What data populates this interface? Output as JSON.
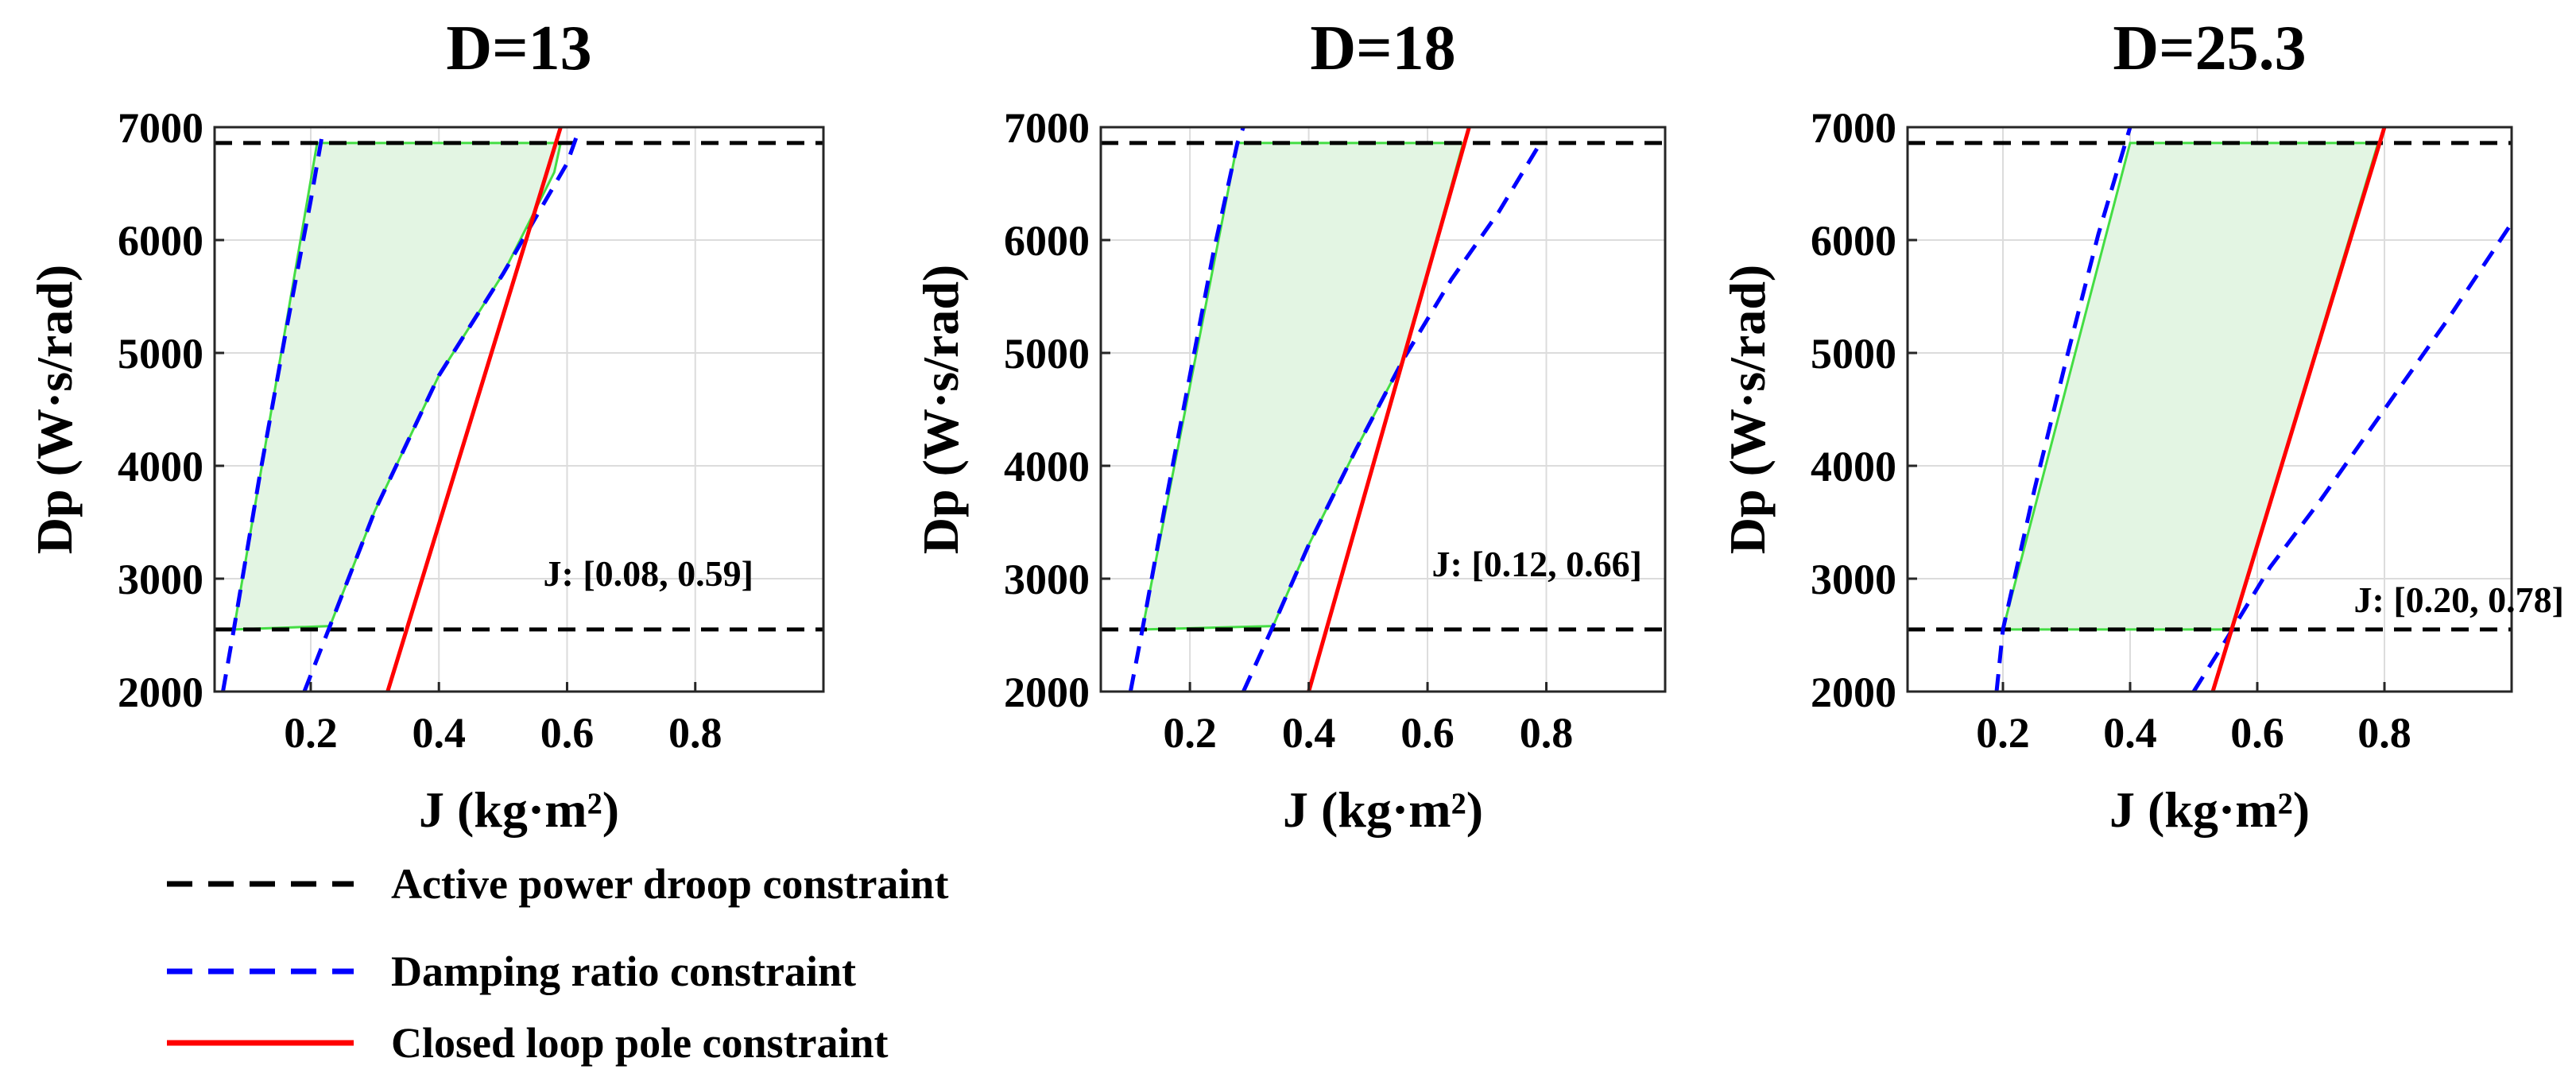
{
  "colors": {
    "droop": "#000000",
    "damping": "#0000ff",
    "pole": "#ff0000",
    "feasible_fill": "#e3f5e3",
    "feasible_edge": "#44dd44"
  },
  "chart_data": [
    {
      "type": "line",
      "title": "D=13",
      "xlabel": "J (kg·m²)",
      "ylabel": "Dp (W·s/rad)",
      "xlim": [
        0.05,
        1.0
      ],
      "ylim": [
        2000,
        7000
      ],
      "xticks": [
        0.2,
        0.4,
        0.6,
        0.8
      ],
      "xtick_labels": [
        "0.2",
        "0.4",
        "0.6",
        "0.8"
      ],
      "yticks": [
        2000,
        3000,
        4000,
        5000,
        6000,
        7000
      ],
      "ytick_labels": [
        "2000",
        "3000",
        "4000",
        "5000",
        "6000",
        "7000"
      ],
      "annotation": "J: [0.08, 0.59]",
      "series": [
        {
          "name": "Active power droop constraint",
          "style": "dashed",
          "color": "#000000",
          "x": [
            0.05,
            1.0
          ],
          "y": [
            2550,
            2550
          ]
        },
        {
          "name": "Active power droop constraint",
          "style": "dashed",
          "color": "#000000",
          "x": [
            0.05,
            1.0
          ],
          "y": [
            6860,
            6860
          ]
        },
        {
          "name": "Damping ratio constraint",
          "style": "dashed",
          "color": "#0000ff",
          "x": [
            0.063,
            0.08,
            0.12,
            0.16,
            0.2,
            0.22
          ],
          "y": [
            2000,
            2550,
            3900,
            5150,
            6350,
            7000
          ]
        },
        {
          "name": "Damping ratio constraint",
          "style": "dashed",
          "color": "#0000ff",
          "x": [
            0.19,
            0.23,
            0.3,
            0.4,
            0.5,
            0.6,
            0.62
          ],
          "y": [
            2000,
            2580,
            3600,
            4800,
            5700,
            6680,
            7000
          ]
        },
        {
          "name": "Closed loop pole constraint",
          "style": "solid",
          "color": "#ff0000",
          "x": [
            0.32,
            0.59
          ],
          "y": [
            2000,
            7000
          ]
        }
      ],
      "feasible_region": {
        "x": [
          0.08,
          0.21,
          0.59,
          0.58,
          0.5,
          0.4,
          0.3,
          0.23
        ],
        "y": [
          2550,
          6860,
          6860,
          6600,
          5700,
          4800,
          3600,
          2580
        ]
      }
    },
    {
      "type": "line",
      "title": "D=18",
      "xlabel": "J (kg·m²)",
      "ylabel": "Dp (W·s/rad)",
      "xlim": [
        0.05,
        1.0
      ],
      "ylim": [
        2000,
        7000
      ],
      "xticks": [
        0.2,
        0.4,
        0.6,
        0.8
      ],
      "xtick_labels": [
        "0.2",
        "0.4",
        "0.6",
        "0.8"
      ],
      "yticks": [
        2000,
        3000,
        4000,
        5000,
        6000,
        7000
      ],
      "ytick_labels": [
        "2000",
        "3000",
        "4000",
        "5000",
        "6000",
        "7000"
      ],
      "annotation": "J: [0.12, 0.66]",
      "series": [
        {
          "name": "Active power droop constraint",
          "style": "dashed",
          "color": "#000000",
          "x": [
            0.05,
            1.0
          ],
          "y": [
            2550,
            2550
          ]
        },
        {
          "name": "Active power droop constraint",
          "style": "dashed",
          "color": "#000000",
          "x": [
            0.05,
            1.0
          ],
          "y": [
            6860,
            6860
          ]
        },
        {
          "name": "Damping ratio constraint",
          "style": "dashed",
          "color": "#0000ff",
          "x": [
            0.1,
            0.12,
            0.16,
            0.2,
            0.24,
            0.28,
            0.29
          ],
          "y": [
            2000,
            2550,
            3700,
            4800,
            5900,
            6860,
            7000
          ]
        },
        {
          "name": "Damping ratio constraint",
          "style": "dashed",
          "color": "#0000ff",
          "x": [
            0.29,
            0.34,
            0.4,
            0.48,
            0.56,
            0.64,
            0.72,
            0.79
          ],
          "y": [
            2000,
            2580,
            3300,
            4150,
            4950,
            5650,
            6250,
            6860
          ]
        },
        {
          "name": "Closed loop pole constraint",
          "style": "solid",
          "color": "#ff0000",
          "x": [
            0.4,
            0.67
          ],
          "y": [
            2000,
            7000
          ]
        }
      ],
      "feasible_region": {
        "x": [
          0.12,
          0.28,
          0.66,
          0.56,
          0.48,
          0.4,
          0.34
        ],
        "y": [
          2550,
          6860,
          6860,
          4950,
          4150,
          3300,
          2580
        ]
      }
    },
    {
      "type": "line",
      "title": "D=25.3",
      "xlabel": "J (kg·m²)",
      "ylabel": "Dp (W·s/rad)",
      "xlim": [
        0.05,
        1.0
      ],
      "ylim": [
        2000,
        7000
      ],
      "xticks": [
        0.2,
        0.4,
        0.6,
        0.8
      ],
      "xtick_labels": [
        "0.2",
        "0.4",
        "0.6",
        "0.8"
      ],
      "yticks": [
        2000,
        3000,
        4000,
        5000,
        6000,
        7000
      ],
      "ytick_labels": [
        "2000",
        "3000",
        "4000",
        "5000",
        "6000",
        "7000"
      ],
      "annotation": "J: [0.20, 0.78]",
      "series": [
        {
          "name": "Active power droop constraint",
          "style": "dashed",
          "color": "#000000",
          "x": [
            0.05,
            1.0
          ],
          "y": [
            2550,
            2550
          ]
        },
        {
          "name": "Active power droop constraint",
          "style": "dashed",
          "color": "#000000",
          "x": [
            0.05,
            1.0
          ],
          "y": [
            6860,
            6860
          ]
        },
        {
          "name": "Damping ratio constraint",
          "style": "dashed",
          "color": "#0000ff",
          "x": [
            0.19,
            0.2,
            0.25,
            0.3,
            0.35,
            0.4
          ],
          "y": [
            2000,
            2550,
            3800,
            4950,
            6050,
            7000
          ]
        },
        {
          "name": "Damping ratio constraint",
          "style": "dashed",
          "color": "#0000ff",
          "x": [
            0.5,
            0.55,
            0.62,
            0.7,
            0.8,
            0.9,
            1.0
          ],
          "y": [
            2000,
            2450,
            3100,
            3700,
            4500,
            5300,
            6150
          ]
        },
        {
          "name": "Closed loop pole constraint",
          "style": "solid",
          "color": "#ff0000",
          "x": [
            0.53,
            0.8
          ],
          "y": [
            2000,
            7000
          ]
        }
      ],
      "feasible_region": {
        "x": [
          0.2,
          0.4,
          0.79,
          0.56
        ],
        "y": [
          2550,
          6860,
          6860,
          2550
        ]
      }
    }
  ],
  "legend": {
    "items": [
      {
        "label": "Active power droop constraint",
        "color": "#000000",
        "style": "dashed"
      },
      {
        "label": "Damping ratio constraint",
        "color": "#0000ff",
        "style": "dashed"
      },
      {
        "label": "Closed loop pole constraint",
        "color": "#ff0000",
        "style": "solid"
      }
    ]
  }
}
